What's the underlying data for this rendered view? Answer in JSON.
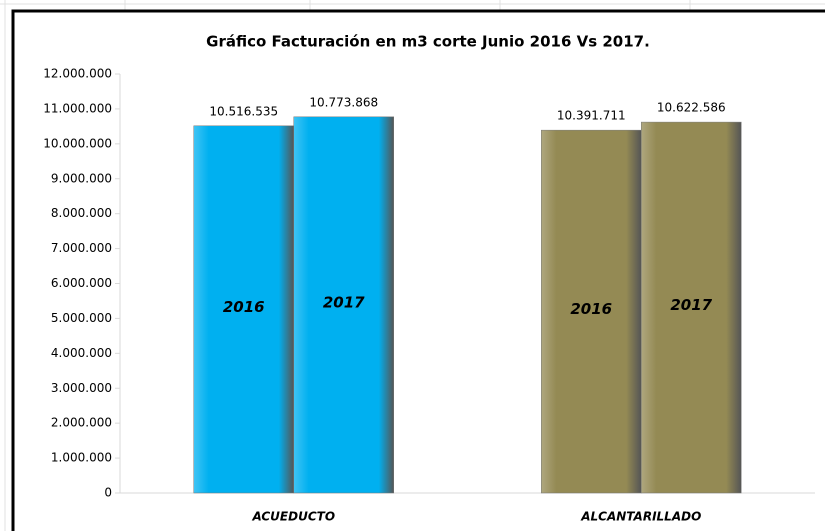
{
  "chart_data": {
    "type": "bar",
    "title": "Gráfico Facturación en m3 corte Junio 2016 Vs 2017.",
    "categories": [
      "ACUEDUCTO",
      "ALCANTARILLADO"
    ],
    "category_colors": [
      "#00b0f0",
      "#948a54"
    ],
    "series": [
      {
        "name": "2016",
        "values": [
          10516535,
          10391711
        ],
        "value_labels": [
          "10.516.535",
          "10.391.711"
        ]
      },
      {
        "name": "2017",
        "values": [
          10773868,
          10622586
        ],
        "value_labels": [
          "10.773.868",
          "10.622.586"
        ]
      }
    ],
    "ylim": [
      0,
      12000000
    ],
    "yticks": [
      0,
      {
        "value": 1000000,
        "label": "1.000.000"
      },
      {
        "value": 2000000,
        "label": "2.000.000"
      },
      {
        "value": 3000000,
        "label": "3.000.000"
      },
      {
        "value": 4000000,
        "label": "4.000.000"
      },
      {
        "value": 5000000,
        "label": "5.000.000"
      },
      {
        "value": 6000000,
        "label": "6.000.000"
      },
      {
        "value": 7000000,
        "label": "7.000.000"
      },
      {
        "value": 8000000,
        "label": "8.000.000"
      },
      {
        "value": 9000000,
        "label": "9.000.000"
      },
      {
        "value": 10000000,
        "label": "10.000.000"
      },
      {
        "value": 11000000,
        "label": "11.000.000"
      },
      {
        "value": 12000000,
        "label": "12.000.000"
      }
    ],
    "grid": false
  }
}
